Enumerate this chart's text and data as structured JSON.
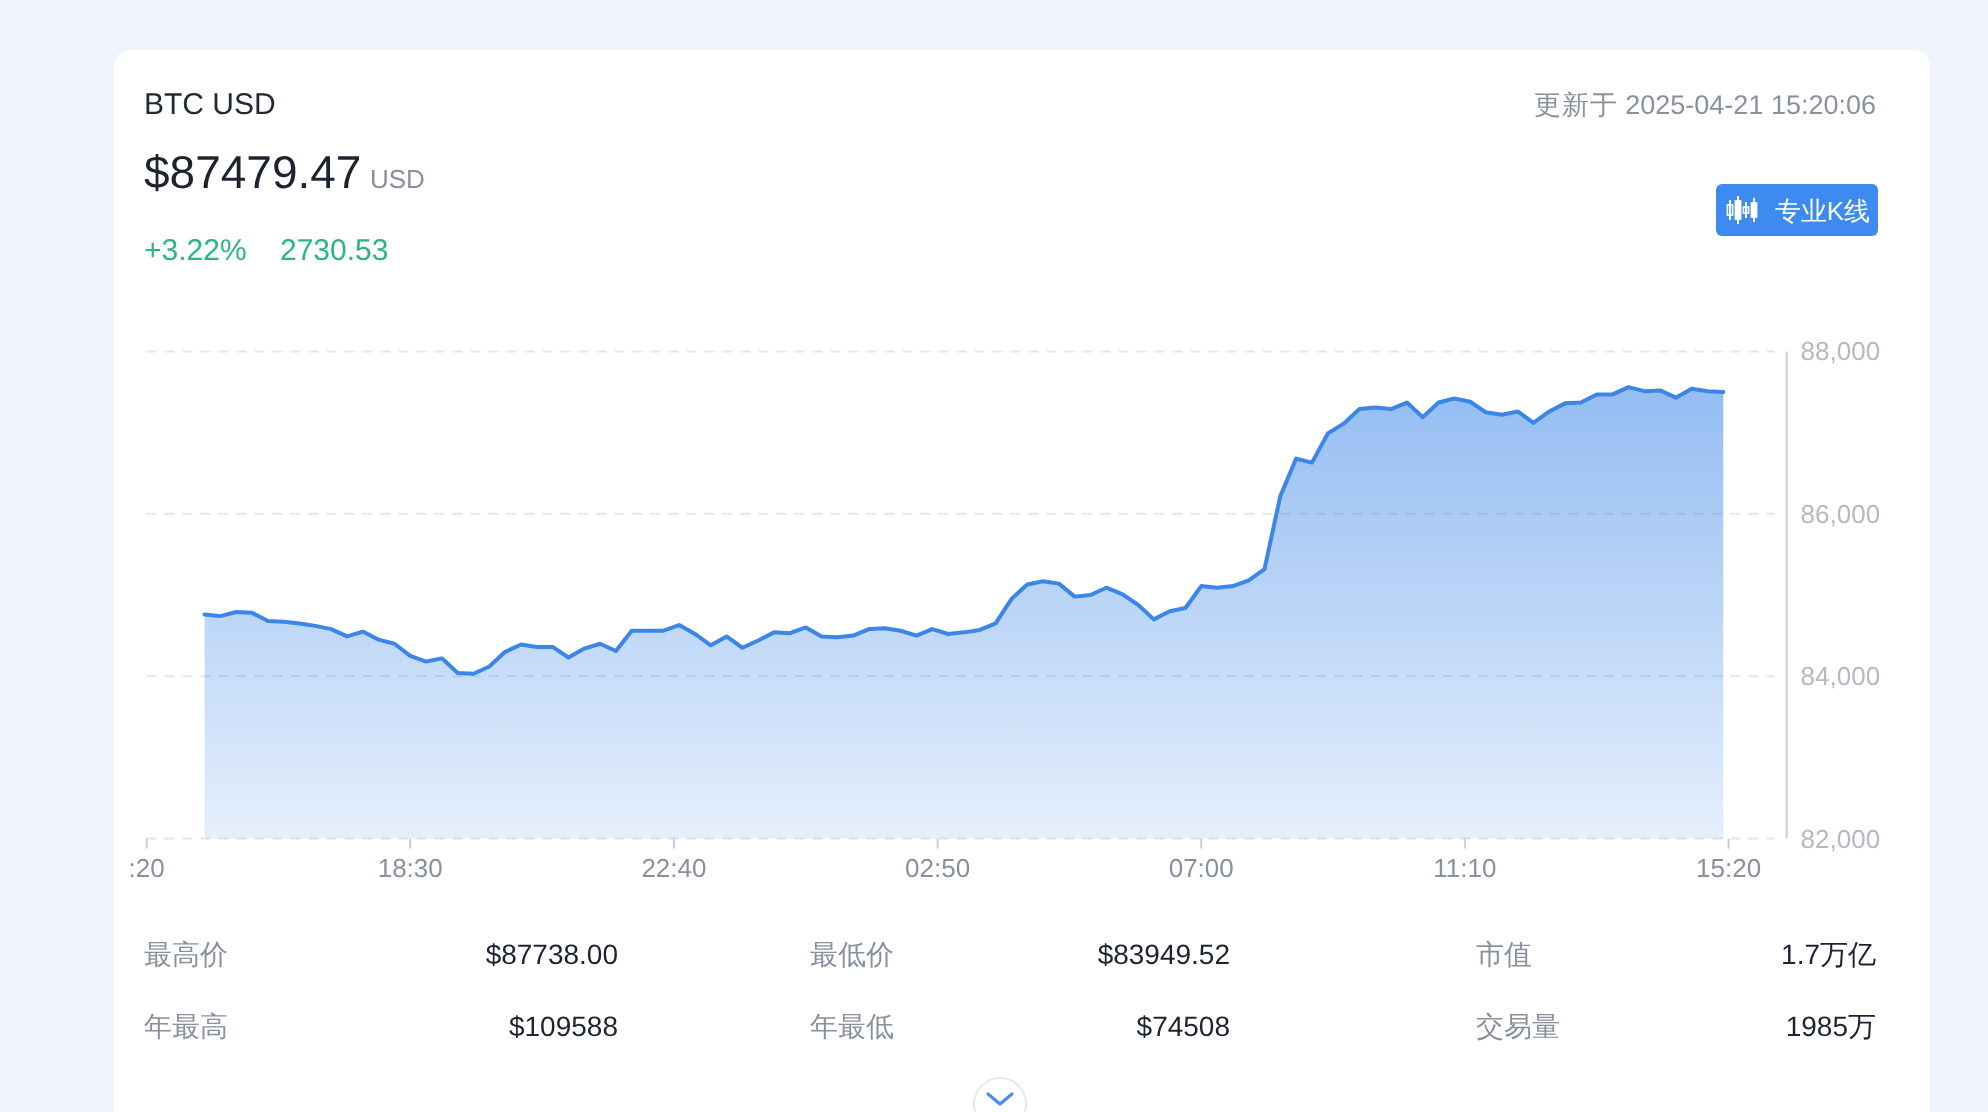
{
  "chart_data": {
    "type": "area",
    "title": "BTC USD",
    "x": [
      "2025-04-20T15:15",
      "2025-04-20T15:30",
      "2025-04-20T15:45",
      "2025-04-20T16:00",
      "2025-04-20T16:15",
      "2025-04-20T16:30",
      "2025-04-20T16:45",
      "2025-04-20T17:00",
      "2025-04-20T17:15",
      "2025-04-20T17:30",
      "2025-04-20T17:45",
      "2025-04-20T18:00",
      "2025-04-20T18:15",
      "2025-04-20T18:30",
      "2025-04-20T18:45",
      "2025-04-20T19:00",
      "2025-04-20T19:15",
      "2025-04-20T19:30",
      "2025-04-20T19:45",
      "2025-04-20T20:00",
      "2025-04-20T20:15",
      "2025-04-20T20:30",
      "2025-04-20T20:45",
      "2025-04-20T21:00",
      "2025-04-20T21:15",
      "2025-04-20T21:30",
      "2025-04-20T21:45",
      "2025-04-20T22:00",
      "2025-04-20T22:15",
      "2025-04-20T22:30",
      "2025-04-20T22:45",
      "2025-04-20T23:00",
      "2025-04-20T23:15",
      "2025-04-20T23:30",
      "2025-04-20T23:45",
      "2025-04-21T00:00",
      "2025-04-21T00:15",
      "2025-04-21T00:30",
      "2025-04-21T00:45",
      "2025-04-21T01:00",
      "2025-04-21T01:15",
      "2025-04-21T01:30",
      "2025-04-21T01:45",
      "2025-04-21T02:00",
      "2025-04-21T02:15",
      "2025-04-21T02:30",
      "2025-04-21T02:45",
      "2025-04-21T03:00",
      "2025-04-21T03:15",
      "2025-04-21T03:30",
      "2025-04-21T03:45",
      "2025-04-21T04:00",
      "2025-04-21T04:15",
      "2025-04-21T04:30",
      "2025-04-21T04:45",
      "2025-04-21T05:00",
      "2025-04-21T05:15",
      "2025-04-21T05:30",
      "2025-04-21T05:45",
      "2025-04-21T06:00",
      "2025-04-21T06:15",
      "2025-04-21T06:30",
      "2025-04-21T06:45",
      "2025-04-21T07:00",
      "2025-04-21T07:15",
      "2025-04-21T07:30",
      "2025-04-21T07:45",
      "2025-04-21T08:00",
      "2025-04-21T08:15",
      "2025-04-21T08:30",
      "2025-04-21T08:45",
      "2025-04-21T09:00",
      "2025-04-21T09:15",
      "2025-04-21T09:30",
      "2025-04-21T09:45",
      "2025-04-21T10:00",
      "2025-04-21T10:15",
      "2025-04-21T10:30",
      "2025-04-21T10:45",
      "2025-04-21T11:00",
      "2025-04-21T11:15",
      "2025-04-21T11:30",
      "2025-04-21T11:45",
      "2025-04-21T12:00",
      "2025-04-21T12:15",
      "2025-04-21T12:30",
      "2025-04-21T12:45",
      "2025-04-21T13:00",
      "2025-04-21T13:15",
      "2025-04-21T13:30",
      "2025-04-21T13:45",
      "2025-04-21T14:00",
      "2025-04-21T14:15",
      "2025-04-21T14:30",
      "2025-04-21T14:45",
      "2025-04-21T15:00",
      "2025-04-21T15:15"
    ],
    "series": [
      {
        "color": "#3b86e8",
        "values": [
          84760,
          84740,
          84790,
          84780,
          84680,
          84670,
          84650,
          84620,
          84580,
          84490,
          84550,
          84450,
          84400,
          84250,
          84180,
          84220,
          84040,
          84030,
          84120,
          84300,
          84390,
          84360,
          84360,
          84230,
          84340,
          84400,
          84310,
          84560,
          84560,
          84560,
          84630,
          84520,
          84380,
          84490,
          84350,
          84440,
          84540,
          84530,
          84600,
          84490,
          84480,
          84500,
          84580,
          84590,
          84560,
          84500,
          84580,
          84520,
          84540,
          84570,
          84650,
          84950,
          85130,
          85170,
          85140,
          84980,
          85000,
          85090,
          85010,
          84880,
          84700,
          84800,
          84840,
          85110,
          85090,
          85110,
          85180,
          85320,
          86220,
          86680,
          86630,
          86990,
          87110,
          87290,
          87310,
          87290,
          87370,
          87190,
          87370,
          87420,
          87380,
          87250,
          87220,
          87260,
          87120,
          87260,
          87360,
          87370,
          87470,
          87470,
          87560,
          87510,
          87520,
          87430,
          87540,
          87510,
          87500
        ]
      }
    ],
    "xlim": [
      "2025-04-20T14:20",
      "2025-04-21T16:15"
    ],
    "xticks": [
      {
        "value": "2025-04-20T14:20",
        "label": ":20"
      },
      {
        "value": "2025-04-20T18:30",
        "label": "18:30"
      },
      {
        "value": "2025-04-20T22:40",
        "label": "22:40"
      },
      {
        "value": "2025-04-21T02:50",
        "label": "02:50"
      },
      {
        "value": "2025-04-21T07:00",
        "label": "07:00"
      },
      {
        "value": "2025-04-21T11:10",
        "label": "11:10"
      },
      {
        "value": "2025-04-21T15:20",
        "label": "15:20"
      }
    ],
    "ylim": [
      82000,
      88000
    ],
    "yticks": [
      {
        "value": 82000,
        "label": "82,000"
      },
      {
        "value": 84000,
        "label": "84,000"
      },
      {
        "value": 86000,
        "label": "86,000"
      },
      {
        "value": 88000,
        "label": "88,000"
      }
    ],
    "grid": "y",
    "annotations": [
      "$87479.47",
      "USD",
      "+3.22%",
      "2730.53",
      "更新于 2025-04-21 15:20:06",
      "专业K线",
      "最高价",
      "$87738.00",
      "最低价",
      "$83949.52",
      "市值",
      "1.7万亿",
      "年最高",
      "$109588",
      "年最低",
      "$74508",
      "交易量",
      "1985万"
    ]
  }
}
